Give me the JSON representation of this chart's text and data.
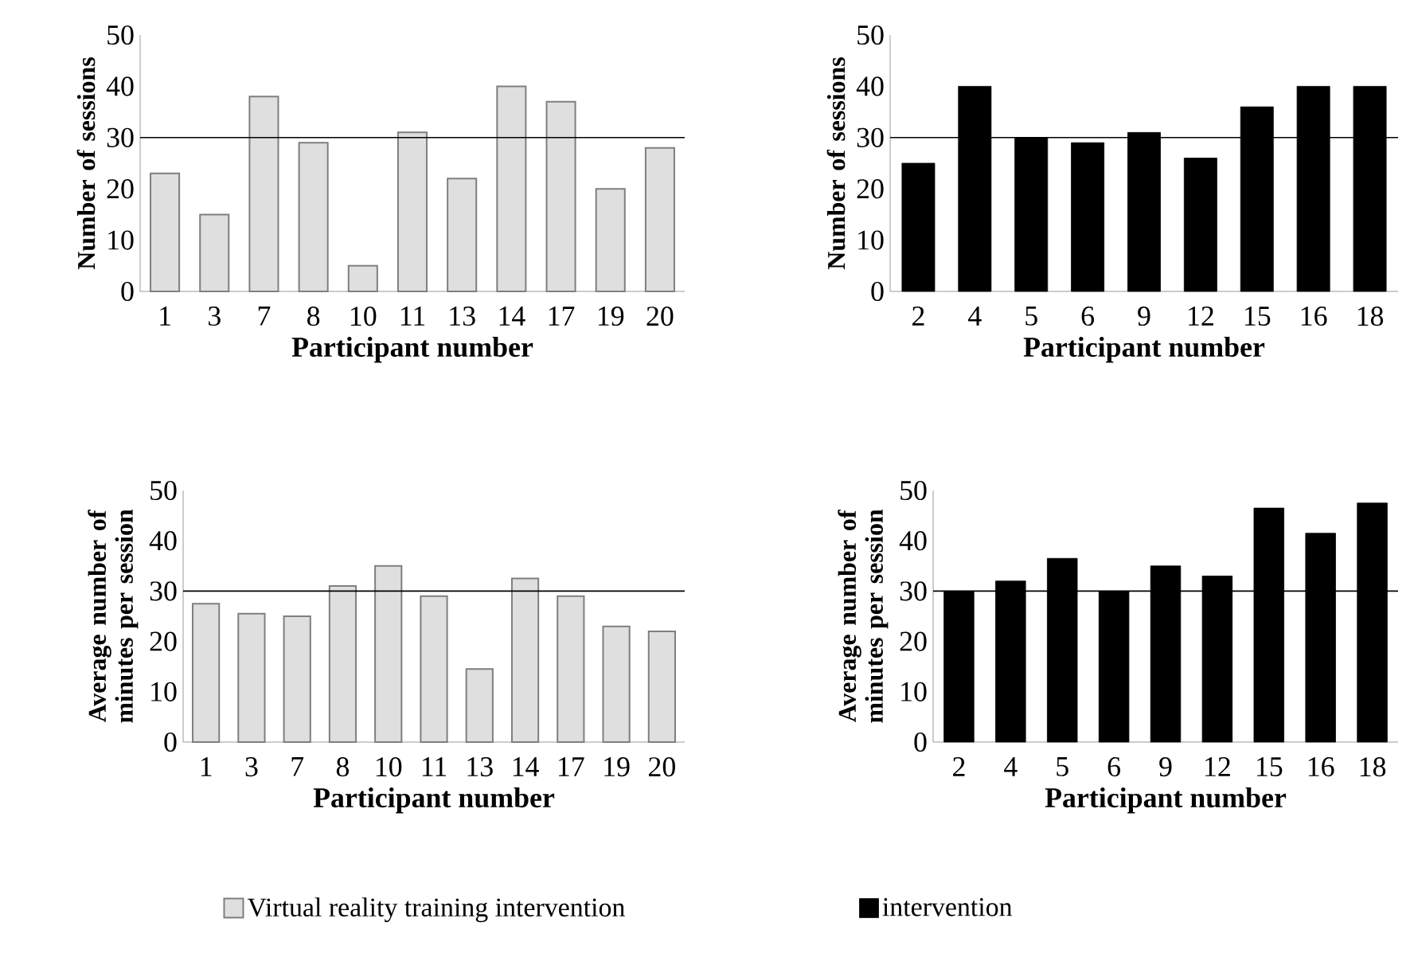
{
  "chart_data": [
    {
      "type": "bar",
      "xlabel": "Participant number",
      "ylabel": "Number of sessions",
      "categories": [
        "1",
        "3",
        "7",
        "8",
        "10",
        "11",
        "13",
        "14",
        "17",
        "19",
        "20"
      ],
      "series": [
        {
          "color": "#7f7f7f",
          "values": [
            23,
            15,
            38,
            29,
            5,
            31,
            22,
            40,
            37,
            20,
            28
          ]
        }
      ],
      "ylim": [
        0,
        50
      ],
      "yticks": [
        0,
        10,
        20,
        30,
        40,
        50
      ],
      "ref_lines": [
        {
          "axis": "y",
          "value": 30,
          "color": "#000000"
        }
      ]
    },
    {
      "type": "bar",
      "xlabel": "Participant number",
      "ylabel": "Number of sessions",
      "categories": [
        "2",
        "4",
        "5",
        "6",
        "9",
        "12",
        "15",
        "16",
        "18"
      ],
      "series": [
        {
          "color": "#000000",
          "values": [
            25,
            40,
            30,
            29,
            31,
            26,
            36,
            40,
            40
          ]
        }
      ],
      "ylim": [
        0,
        50
      ],
      "yticks": [
        0,
        10,
        20,
        30,
        40,
        50
      ],
      "ref_lines": [
        {
          "axis": "y",
          "value": 30,
          "color": "#000000"
        }
      ]
    },
    {
      "type": "bar",
      "xlabel": "Participant number",
      "ylabel": "Average number of minutes per session",
      "categories": [
        "1",
        "3",
        "7",
        "8",
        "10",
        "11",
        "13",
        "14",
        "17",
        "19",
        "20"
      ],
      "series": [
        {
          "name": "Virtual reality training intervention",
          "color": "#7f7f7f",
          "values": [
            27.5,
            25.5,
            25,
            31,
            35,
            29,
            14.5,
            32.5,
            29,
            23,
            22
          ]
        }
      ],
      "ylim": [
        0,
        50
      ],
      "yticks": [
        0,
        10,
        20,
        30,
        40,
        50
      ],
      "ref_lines": [
        {
          "axis": "y",
          "value": 30,
          "color": "#000000"
        }
      ],
      "legend": "bottom"
    },
    {
      "type": "bar",
      "xlabel": "Participant number",
      "ylabel": "Average number of minutes per session",
      "categories": [
        "2",
        "4",
        "5",
        "6",
        "9",
        "12",
        "15",
        "16",
        "18"
      ],
      "series": [
        {
          "name": "intervention",
          "color": "#000000",
          "values": [
            30,
            32,
            36.5,
            30,
            35,
            33,
            46.5,
            41.5,
            47.5
          ]
        }
      ],
      "ylim": [
        0,
        50
      ],
      "yticks": [
        0,
        10,
        20,
        30,
        40,
        50
      ],
      "ref_lines": [
        {
          "axis": "y",
          "value": 30,
          "color": "#000000"
        }
      ],
      "legend": "bottom"
    }
  ]
}
